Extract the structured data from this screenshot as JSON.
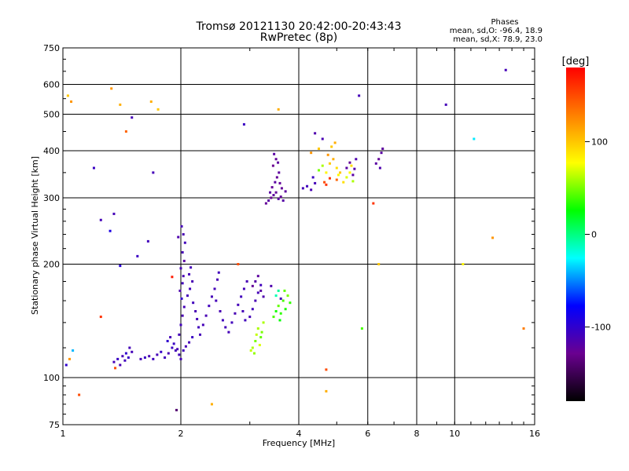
{
  "chart_data": {
    "type": "scatter",
    "title": "Tromsø 20121130 20:42:00-20:43:43",
    "subtitle": "RwPretec (8p)",
    "xlabel": "Frequency [MHz]",
    "ylabel": "Stationary phase Virtual Height [km]",
    "x_scale": "log2",
    "y_scale": "log",
    "xlim": [
      1,
      16
    ],
    "ylim": [
      75,
      750
    ],
    "x_ticks": [
      "1",
      "2",
      "4",
      "6",
      "8",
      "10",
      "16"
    ],
    "x_tick_values": [
      1,
      2,
      4,
      6,
      8,
      10,
      16
    ],
    "y_ticks": [
      "75",
      "100",
      "200",
      "300",
      "400",
      "500",
      "600",
      "750"
    ],
    "y_tick_values": [
      75,
      100,
      200,
      300,
      400,
      500,
      600,
      750
    ],
    "grid": true,
    "stats": {
      "heading": "Phases",
      "line1": "mean, sd,O: -96.4, 18.9",
      "line2": "mean, sd,X:  78.9, 23.0"
    },
    "colorbar": {
      "label": "[deg]",
      "ticks": [
        "100",
        "0",
        "-100"
      ],
      "tick_values": [
        100,
        0,
        -100
      ],
      "range": [
        -180,
        180
      ],
      "colors": [
        "#000000",
        "#6a0090",
        "#0000ff",
        "#00ffff",
        "#00ff00",
        "#ffff00",
        "#ff8000",
        "#ff0000"
      ]
    },
    "points": [
      [
        1.02,
        108,
        -100
      ],
      [
        1.04,
        112,
        120
      ],
      [
        1.06,
        118,
        -40
      ],
      [
        1.05,
        540,
        120
      ],
      [
        1.03,
        560,
        100
      ],
      [
        1.35,
        110,
        -110
      ],
      [
        1.38,
        112,
        -105
      ],
      [
        1.42,
        114,
        -110
      ],
      [
        1.45,
        116,
        -100
      ],
      [
        1.48,
        120,
        -110
      ],
      [
        1.4,
        108,
        -112
      ],
      [
        1.44,
        111,
        -108
      ],
      [
        1.47,
        113,
        -104
      ],
      [
        1.5,
        117,
        -110
      ],
      [
        1.36,
        106,
        150
      ],
      [
        1.58,
        112,
        -110
      ],
      [
        1.62,
        113,
        -105
      ],
      [
        1.66,
        114,
        -112
      ],
      [
        1.7,
        112,
        -108
      ],
      [
        1.74,
        115,
        -110
      ],
      [
        1.78,
        117,
        -104
      ],
      [
        1.82,
        113,
        -108
      ],
      [
        1.86,
        116,
        -112
      ],
      [
        1.9,
        120,
        -106
      ],
      [
        1.94,
        118,
        -110
      ],
      [
        1.85,
        125,
        -100
      ],
      [
        1.88,
        128,
        -110
      ],
      [
        1.92,
        123,
        -105
      ],
      [
        1.96,
        119,
        -112
      ],
      [
        1.98,
        115,
        -108
      ],
      [
        2.0,
        112,
        -110
      ],
      [
        2.03,
        118,
        -108
      ],
      [
        2.06,
        121,
        -112
      ],
      [
        2.1,
        124,
        -110
      ],
      [
        2.14,
        128,
        -105
      ],
      [
        1.98,
        130,
        -110
      ],
      [
        2.0,
        138,
        -108
      ],
      [
        2.02,
        146,
        -112
      ],
      [
        2.04,
        154,
        -110
      ],
      [
        2.01,
        162,
        -100
      ],
      [
        1.99,
        170,
        -115
      ],
      [
        2.02,
        178,
        -108
      ],
      [
        2.03,
        186,
        -112
      ],
      [
        2.0,
        195,
        -110
      ],
      [
        2.04,
        204,
        -120
      ],
      [
        2.02,
        215,
        -110
      ],
      [
        2.05,
        228,
        -108
      ],
      [
        2.03,
        240,
        -112
      ],
      [
        2.01,
        252,
        -110
      ],
      [
        1.97,
        236,
        -115
      ],
      [
        2.08,
        165,
        -110
      ],
      [
        2.11,
        172,
        -108
      ],
      [
        2.14,
        180,
        -112
      ],
      [
        2.1,
        188,
        -110
      ],
      [
        2.12,
        196,
        -110
      ],
      [
        2.15,
        158,
        -108
      ],
      [
        2.18,
        150,
        -112
      ],
      [
        2.2,
        143,
        -110
      ],
      [
        2.22,
        136,
        -108
      ],
      [
        2.24,
        130,
        -110
      ],
      [
        2.28,
        138,
        -110
      ],
      [
        2.32,
        146,
        -112
      ],
      [
        2.36,
        155,
        -108
      ],
      [
        2.4,
        164,
        -110
      ],
      [
        2.44,
        172,
        -110
      ],
      [
        2.48,
        182,
        -112
      ],
      [
        2.5,
        190,
        -108
      ],
      [
        2.46,
        160,
        -110
      ],
      [
        2.52,
        150,
        -112
      ],
      [
        2.56,
        142,
        -108
      ],
      [
        2.6,
        136,
        -110
      ],
      [
        2.65,
        132,
        -110
      ],
      [
        2.7,
        140,
        -108
      ],
      [
        2.75,
        148,
        -112
      ],
      [
        2.8,
        156,
        -110
      ],
      [
        2.85,
        164,
        -108
      ],
      [
        2.9,
        172,
        -110
      ],
      [
        2.95,
        180,
        -112
      ],
      [
        2.88,
        150,
        -110
      ],
      [
        2.92,
        142,
        -108
      ],
      [
        3.0,
        145,
        -110
      ],
      [
        3.05,
        152,
        -108
      ],
      [
        3.1,
        160,
        -112
      ],
      [
        3.15,
        168,
        -110
      ],
      [
        3.2,
        176,
        -108
      ],
      [
        3.1,
        180,
        -118
      ],
      [
        3.15,
        186,
        -122
      ],
      [
        3.2,
        170,
        -120
      ],
      [
        3.25,
        164,
        -115
      ],
      [
        3.05,
        175,
        -125
      ],
      [
        3.05,
        120,
        60
      ],
      [
        3.1,
        125,
        50
      ],
      [
        3.12,
        130,
        65
      ],
      [
        3.08,
        116,
        55
      ],
      [
        3.15,
        135,
        60
      ],
      [
        3.2,
        128,
        45
      ],
      [
        3.18,
        122,
        70
      ],
      [
        3.25,
        140,
        60
      ],
      [
        3.22,
        132,
        50
      ],
      [
        3.02,
        118,
        65
      ],
      [
        3.45,
        145,
        40
      ],
      [
        3.5,
        150,
        30
      ],
      [
        3.55,
        155,
        45
      ],
      [
        3.6,
        148,
        35
      ],
      [
        3.65,
        160,
        40
      ],
      [
        3.7,
        152,
        30
      ],
      [
        3.75,
        165,
        50
      ],
      [
        3.8,
        158,
        35
      ],
      [
        3.58,
        142,
        25
      ],
      [
        3.68,
        170,
        45
      ],
      [
        3.5,
        165,
        -10
      ],
      [
        3.55,
        170,
        -5
      ],
      [
        3.6,
        162,
        -110
      ],
      [
        3.4,
        175,
        -115
      ],
      [
        3.3,
        290,
        -125
      ],
      [
        3.35,
        295,
        -120
      ],
      [
        3.4,
        300,
        -128
      ],
      [
        3.45,
        305,
        -122
      ],
      [
        3.5,
        310,
        -125
      ],
      [
        3.55,
        298,
        -120
      ],
      [
        3.6,
        302,
        -125
      ],
      [
        3.65,
        295,
        -118
      ],
      [
        3.7,
        312,
        -122
      ],
      [
        3.42,
        320,
        -125
      ],
      [
        3.48,
        330,
        -120
      ],
      [
        3.52,
        340,
        -125
      ],
      [
        3.56,
        350,
        -122
      ],
      [
        3.44,
        365,
        -128
      ],
      [
        3.5,
        380,
        -125
      ],
      [
        3.46,
        392,
        -120
      ],
      [
        3.54,
        372,
        -122
      ],
      [
        3.58,
        328,
        -125
      ],
      [
        3.38,
        310,
        -120
      ],
      [
        3.62,
        318,
        -125
      ],
      [
        4.1,
        318,
        -110
      ],
      [
        4.2,
        322,
        -108
      ],
      [
        4.3,
        315,
        -112
      ],
      [
        4.4,
        328,
        -110
      ],
      [
        4.35,
        340,
        -105
      ],
      [
        4.5,
        355,
        50
      ],
      [
        4.6,
        365,
        60
      ],
      [
        4.7,
        350,
        80
      ],
      [
        4.8,
        370,
        100
      ],
      [
        4.9,
        380,
        110
      ],
      [
        5.0,
        360,
        90
      ],
      [
        4.75,
        390,
        120
      ],
      [
        4.85,
        410,
        100
      ],
      [
        4.95,
        420,
        110
      ],
      [
        5.05,
        345,
        80
      ],
      [
        4.65,
        330,
        150
      ],
      [
        4.8,
        338,
        160
      ],
      [
        5.0,
        335,
        140
      ],
      [
        5.1,
        350,
        100
      ],
      [
        4.7,
        325,
        160
      ],
      [
        5.2,
        330,
        90
      ],
      [
        5.3,
        340,
        70
      ],
      [
        5.4,
        350,
        80
      ],
      [
        5.5,
        332,
        60
      ],
      [
        5.45,
        365,
        90
      ],
      [
        5.3,
        360,
        -120
      ],
      [
        5.4,
        372,
        -125
      ],
      [
        5.5,
        345,
        -120
      ],
      [
        5.6,
        380,
        -115
      ],
      [
        5.55,
        358,
        -118
      ],
      [
        6.3,
        370,
        -120
      ],
      [
        6.4,
        380,
        -125
      ],
      [
        6.5,
        395,
        -120
      ],
      [
        6.45,
        360,
        -115
      ],
      [
        6.55,
        405,
        -122
      ],
      [
        4.4,
        445,
        -115
      ],
      [
        4.6,
        430,
        -112
      ],
      [
        4.5,
        405,
        100
      ],
      [
        4.3,
        395,
        120
      ],
      [
        1.2,
        360,
        -105
      ],
      [
        1.25,
        262,
        -110
      ],
      [
        1.32,
        245,
        -90
      ],
      [
        1.35,
        272,
        -110
      ],
      [
        1.4,
        198,
        -95
      ],
      [
        1.5,
        490,
        -110
      ],
      [
        1.55,
        210,
        -105
      ],
      [
        1.65,
        230,
        -108
      ],
      [
        1.7,
        350,
        -110
      ],
      [
        2.9,
        470,
        -105
      ],
      [
        3.55,
        515,
        110
      ],
      [
        5.7,
        560,
        -110
      ],
      [
        9.5,
        530,
        -110
      ],
      [
        13.5,
        655,
        -110
      ],
      [
        1.33,
        585,
        120
      ],
      [
        1.4,
        530,
        110
      ],
      [
        1.45,
        450,
        140
      ],
      [
        1.68,
        540,
        110
      ],
      [
        1.75,
        515,
        100
      ],
      [
        1.1,
        90,
        150
      ],
      [
        1.95,
        82,
        -140
      ],
      [
        2.4,
        85,
        110
      ],
      [
        4.7,
        92,
        110
      ],
      [
        10.5,
        200,
        80
      ],
      [
        11.2,
        430,
        -30
      ],
      [
        12.5,
        235,
        120
      ],
      [
        6.2,
        290,
        160
      ],
      [
        5.8,
        135,
        40
      ],
      [
        15.0,
        135,
        130
      ],
      [
        1.25,
        145,
        160
      ],
      [
        1.9,
        185,
        170
      ],
      [
        6.4,
        200,
        100
      ],
      [
        4.7,
        105,
        150
      ],
      [
        2.8,
        200,
        150
      ]
    ]
  }
}
